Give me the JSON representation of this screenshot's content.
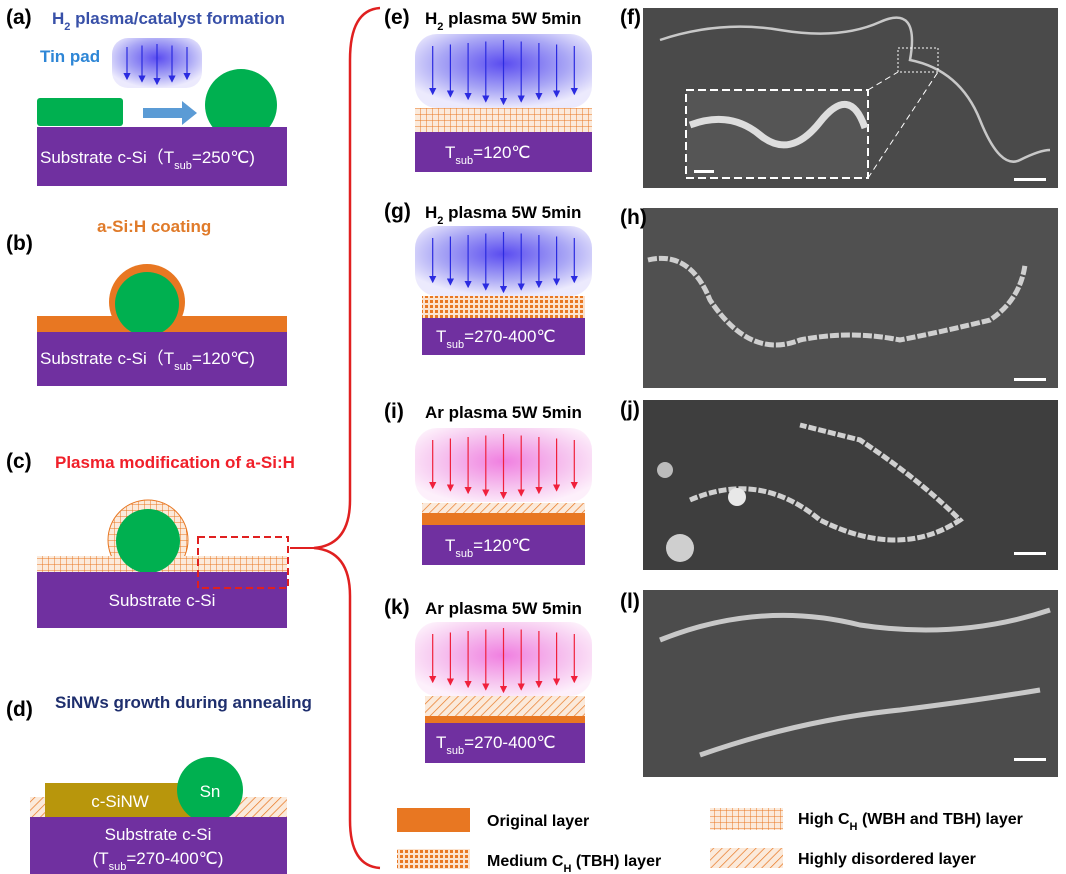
{
  "panels": {
    "a": {
      "label": "(a)",
      "title": {
        "pre": "H",
        "sub": "2",
        "post": " plasma/catalyst formation"
      },
      "note": "Tin pad",
      "substrate": {
        "pre": "Substrate c-Si（T",
        "sub": "sub",
        "post": "=250℃)"
      }
    },
    "b": {
      "label": "(b)",
      "title": "a-Si:H coating",
      "substrate": {
        "pre": "Substrate c-Si（T",
        "sub": "sub",
        "post": "=120℃)"
      }
    },
    "c": {
      "label": "(c)",
      "title": "Plasma modification of a-Si:H",
      "substrate": "Substrate c-Si"
    },
    "d": {
      "label": "(d)",
      "title": "SiNWs growth during annealing",
      "wire": "c-SiNW",
      "catalyst": "Sn",
      "substrate": "Substrate c-Si",
      "temp": {
        "pre": "(T",
        "sub": "sub",
        "post": "=270-400℃)"
      }
    },
    "e": {
      "label": "(e)",
      "title": {
        "pre": "H",
        "sub": "2",
        "post": " plasma 5W 5min"
      },
      "temp": {
        "pre": "T",
        "sub": "sub",
        "post": "=120℃"
      }
    },
    "f": {
      "label": "(f)"
    },
    "g": {
      "label": "(g)",
      "title": {
        "pre": "H",
        "sub": "2",
        "post": " plasma 5W 5min"
      },
      "temp": {
        "pre": "T",
        "sub": "sub",
        "post": "=270-400℃"
      }
    },
    "h": {
      "label": "(h)"
    },
    "i": {
      "label": "(i)",
      "title": "Ar plasma 5W 5min",
      "temp": {
        "pre": "T",
        "sub": "sub",
        "post": "=120℃"
      }
    },
    "j": {
      "label": "(j)"
    },
    "k": {
      "label": "(k)",
      "title": "Ar plasma 5W 5min",
      "temp": {
        "pre": "T",
        "sub": "sub",
        "post": "=270-400℃"
      }
    },
    "l": {
      "label": "(l)"
    }
  },
  "legend": {
    "original": "Original layer",
    "medium": {
      "pre": "Medium C",
      "sub": "H",
      "post": " (TBH) layer"
    },
    "high": {
      "pre": "High C",
      "sub": "H",
      "post": " (WBH and TBH) layer"
    },
    "disordered": "Highly disordered layer"
  }
}
